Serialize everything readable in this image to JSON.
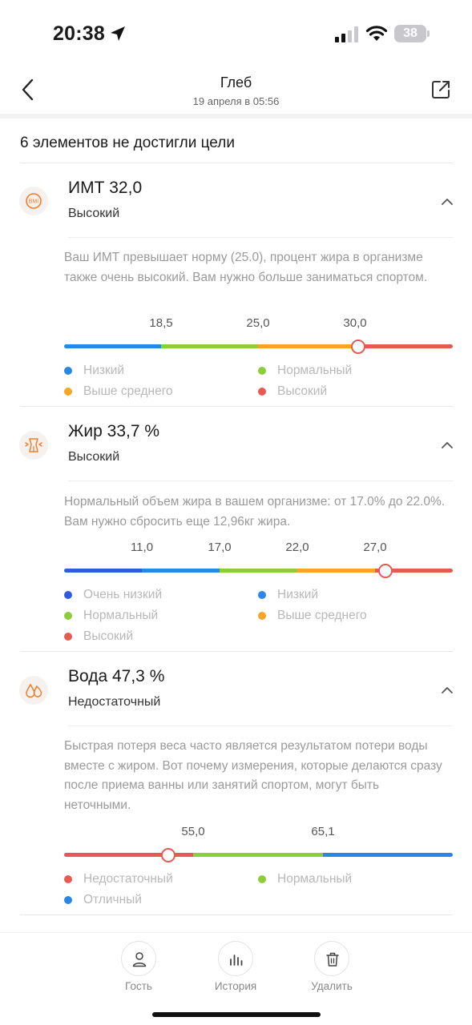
{
  "status": {
    "time": "20:38",
    "battery": "38"
  },
  "header": {
    "title": "Глеб",
    "subtitle": "19 апреля в 05:56"
  },
  "summary": "6 элементов не достигли цели",
  "sections": [
    {
      "icon": "bmi-icon",
      "title": "ИМТ 32,0",
      "status": "Высокий",
      "description": "Ваш ИМТ превышает норму (25.0), процент жира в организме также очень высокий. Вам нужно больше заниматься спортом.",
      "ticks": [
        "18,5",
        "25,0",
        "30,0"
      ],
      "segments": [
        {
          "label": "Низкий",
          "color": "#2a86e8"
        },
        {
          "label": "Нормальный",
          "color": "#8ccd3a"
        },
        {
          "label": "Выше среднего",
          "color": "#f5a623"
        },
        {
          "label": "Высокий",
          "color": "#e85a4f"
        }
      ],
      "marker_fraction": 0.757
    },
    {
      "icon": "body-fat-icon",
      "title": "Жир 33,7 %",
      "status": "Высокий",
      "description": "Нормальный объем жира в вашем организме: от 17.0% до 22.0%. Вам нужно сбросить еще 12,96кг жира.",
      "ticks": [
        "11,0",
        "17,0",
        "22,0",
        "27,0"
      ],
      "segments": [
        {
          "label": "Очень низкий",
          "color": "#2f5be0"
        },
        {
          "label": "Низкий",
          "color": "#2a86e8"
        },
        {
          "label": "Нормальный",
          "color": "#8ccd3a"
        },
        {
          "label": "Выше среднего",
          "color": "#f5a623"
        },
        {
          "label": "Высокий",
          "color": "#e85a4f"
        }
      ],
      "marker_fraction": 0.828
    },
    {
      "icon": "water-drops-icon",
      "title": "Вода 47,3 %",
      "status": "Недостаточный",
      "description": "Быстрая потеря веса часто является результатом потери воды вместе с жиром. Вот почему измерения, которые делаются сразу после приема ванны или занятий спортом, могут быть неточными.",
      "ticks": [
        "55,0",
        "65,1"
      ],
      "segments": [
        {
          "label": "Недостаточный",
          "color": "#e85a4f"
        },
        {
          "label": "Нормальный",
          "color": "#8ccd3a"
        },
        {
          "label": "Отличный",
          "color": "#2a86e8"
        }
      ],
      "marker_fraction": 0.268
    }
  ],
  "toolbar": {
    "guest": "Гость",
    "history": "История",
    "delete": "Удалить"
  }
}
